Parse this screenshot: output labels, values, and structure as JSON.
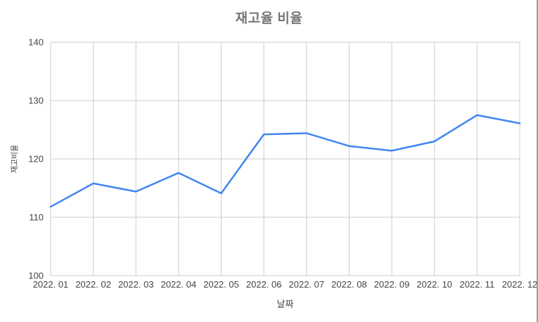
{
  "chart_data": {
    "type": "line",
    "title": "재고율 비율",
    "xlabel": "날짜",
    "ylabel": "재고비율",
    "categories": [
      "2022. 01",
      "2022. 02",
      "2022. 03",
      "2022. 04",
      "2022. 05",
      "2022. 06",
      "2022. 07",
      "2022. 08",
      "2022. 09",
      "2022. 10",
      "2022. 11",
      "2022. 12"
    ],
    "series": [
      {
        "name": "재고비율",
        "values": [
          111.8,
          115.8,
          114.4,
          117.6,
          114.1,
          124.2,
          124.4,
          122.2,
          121.4,
          123.0,
          127.5,
          126.1
        ]
      }
    ],
    "ylim": [
      100,
      140
    ],
    "yticks": [
      100,
      110,
      120,
      130,
      140
    ],
    "grid": true,
    "legend_position": "none",
    "colors": {
      "line": "#4285f4",
      "grid": "#cccccc",
      "title_text": "#757575",
      "tick_text": "#444444",
      "axis_title_text": "#444444",
      "right_edge": "#9e9e9e"
    }
  }
}
